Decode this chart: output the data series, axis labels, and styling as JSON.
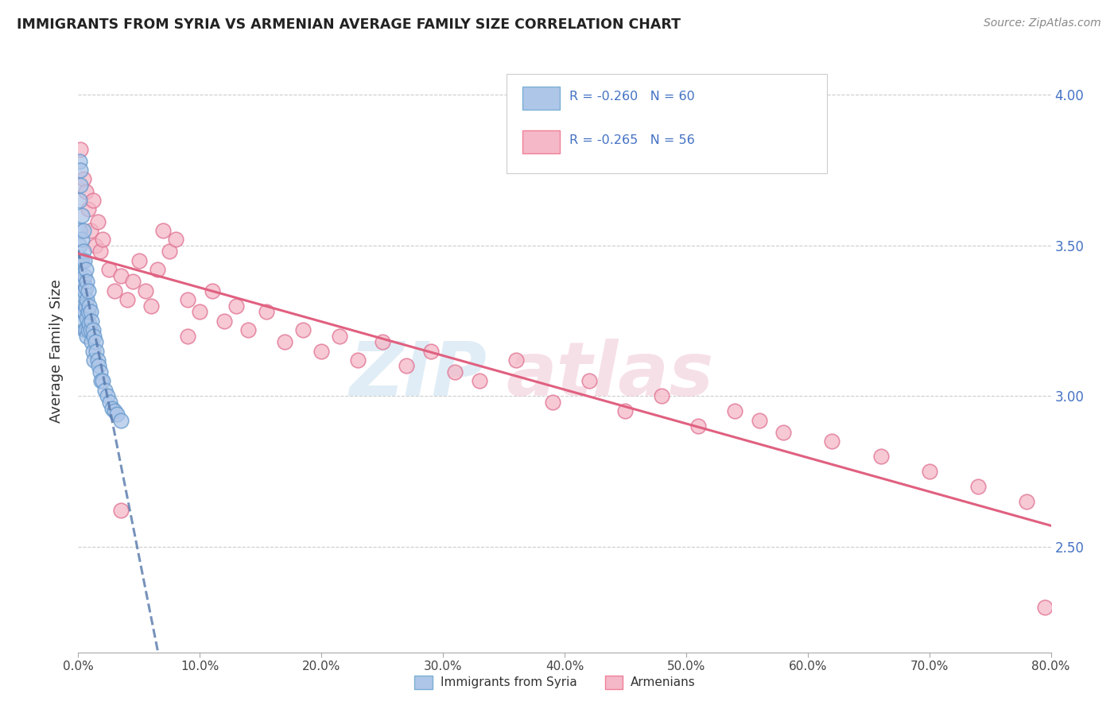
{
  "title": "IMMIGRANTS FROM SYRIA VS ARMENIAN AVERAGE FAMILY SIZE CORRELATION CHART",
  "source_text": "Source: ZipAtlas.com",
  "ylabel": "Average Family Size",
  "xlim": [
    0.0,
    0.8
  ],
  "ylim": [
    2.15,
    4.15
  ],
  "yticks": [
    2.5,
    3.0,
    3.5,
    4.0
  ],
  "xticks": [
    0.0,
    0.1,
    0.2,
    0.3,
    0.4,
    0.5,
    0.6,
    0.7,
    0.8
  ],
  "xtick_labels": [
    "0.0%",
    "10.0%",
    "20.0%",
    "30.0%",
    "40.0%",
    "50.0%",
    "60.0%",
    "70.0%",
    "80.0%"
  ],
  "ytick_labels": [
    "2.50",
    "3.00",
    "3.50",
    "4.00"
  ],
  "legend_entries": [
    {
      "label": "R = -0.260   N = 60",
      "face_color": "#aec6e8",
      "edge_color": "#7bafd4"
    },
    {
      "label": "R = -0.265   N = 56",
      "face_color": "#f4b8c8",
      "edge_color": "#f08098"
    }
  ],
  "bottom_legend": [
    {
      "label": "Immigrants from Syria",
      "face_color": "#aec6e8",
      "edge_color": "#7bafd4"
    },
    {
      "label": "Armenians",
      "face_color": "#f4b8c8",
      "edge_color": "#f08098"
    }
  ],
  "syria_color_face": "#aec6e8",
  "syria_color_edge": "#6699cc",
  "armenia_color_face": "#f4b8c8",
  "armenia_color_edge": "#e07090",
  "syria_line_color": "#5577aa",
  "armenia_line_color": "#e06080",
  "title_color": "#222222",
  "axis_tick_color": "#4472c4",
  "source_color": "#888888",
  "grid_color": "#cccccc",
  "syria_x": [
    0.001,
    0.001,
    0.001,
    0.001,
    0.002,
    0.002,
    0.002,
    0.002,
    0.002,
    0.003,
    0.003,
    0.003,
    0.003,
    0.003,
    0.003,
    0.004,
    0.004,
    0.004,
    0.004,
    0.004,
    0.005,
    0.005,
    0.005,
    0.005,
    0.005,
    0.006,
    0.006,
    0.006,
    0.006,
    0.007,
    0.007,
    0.007,
    0.007,
    0.008,
    0.008,
    0.008,
    0.009,
    0.009,
    0.01,
    0.01,
    0.011,
    0.011,
    0.012,
    0.012,
    0.013,
    0.013,
    0.014,
    0.015,
    0.016,
    0.017,
    0.018,
    0.019,
    0.02,
    0.022,
    0.024,
    0.026,
    0.028,
    0.03,
    0.032,
    0.035
  ],
  "syria_y": [
    3.78,
    3.65,
    3.55,
    3.5,
    3.75,
    3.7,
    3.45,
    3.4,
    3.35,
    3.6,
    3.52,
    3.45,
    3.38,
    3.32,
    3.28,
    3.55,
    3.48,
    3.38,
    3.3,
    3.25,
    3.45,
    3.4,
    3.35,
    3.28,
    3.22,
    3.42,
    3.36,
    3.3,
    3.22,
    3.38,
    3.32,
    3.26,
    3.2,
    3.35,
    3.28,
    3.22,
    3.3,
    3.24,
    3.28,
    3.22,
    3.25,
    3.18,
    3.22,
    3.15,
    3.2,
    3.12,
    3.18,
    3.15,
    3.12,
    3.1,
    3.08,
    3.05,
    3.05,
    3.02,
    3.0,
    2.98,
    2.96,
    2.95,
    2.94,
    2.92
  ],
  "armenia_x": [
    0.002,
    0.004,
    0.006,
    0.008,
    0.01,
    0.012,
    0.014,
    0.016,
    0.018,
    0.02,
    0.025,
    0.03,
    0.035,
    0.04,
    0.045,
    0.05,
    0.055,
    0.06,
    0.065,
    0.07,
    0.075,
    0.08,
    0.09,
    0.1,
    0.11,
    0.12,
    0.13,
    0.14,
    0.155,
    0.17,
    0.185,
    0.2,
    0.215,
    0.23,
    0.25,
    0.27,
    0.29,
    0.31,
    0.33,
    0.36,
    0.39,
    0.42,
    0.45,
    0.48,
    0.51,
    0.54,
    0.56,
    0.58,
    0.62,
    0.66,
    0.7,
    0.74,
    0.78,
    0.09,
    0.035,
    0.795
  ],
  "armenia_y": [
    3.82,
    3.72,
    3.68,
    3.62,
    3.55,
    3.65,
    3.5,
    3.58,
    3.48,
    3.52,
    3.42,
    3.35,
    3.4,
    3.32,
    3.38,
    3.45,
    3.35,
    3.3,
    3.42,
    3.55,
    3.48,
    3.52,
    3.32,
    3.28,
    3.35,
    3.25,
    3.3,
    3.22,
    3.28,
    3.18,
    3.22,
    3.15,
    3.2,
    3.12,
    3.18,
    3.1,
    3.15,
    3.08,
    3.05,
    3.12,
    2.98,
    3.05,
    2.95,
    3.0,
    2.9,
    2.95,
    2.92,
    2.88,
    2.85,
    2.8,
    2.75,
    2.7,
    2.65,
    3.2,
    2.62,
    2.3
  ]
}
